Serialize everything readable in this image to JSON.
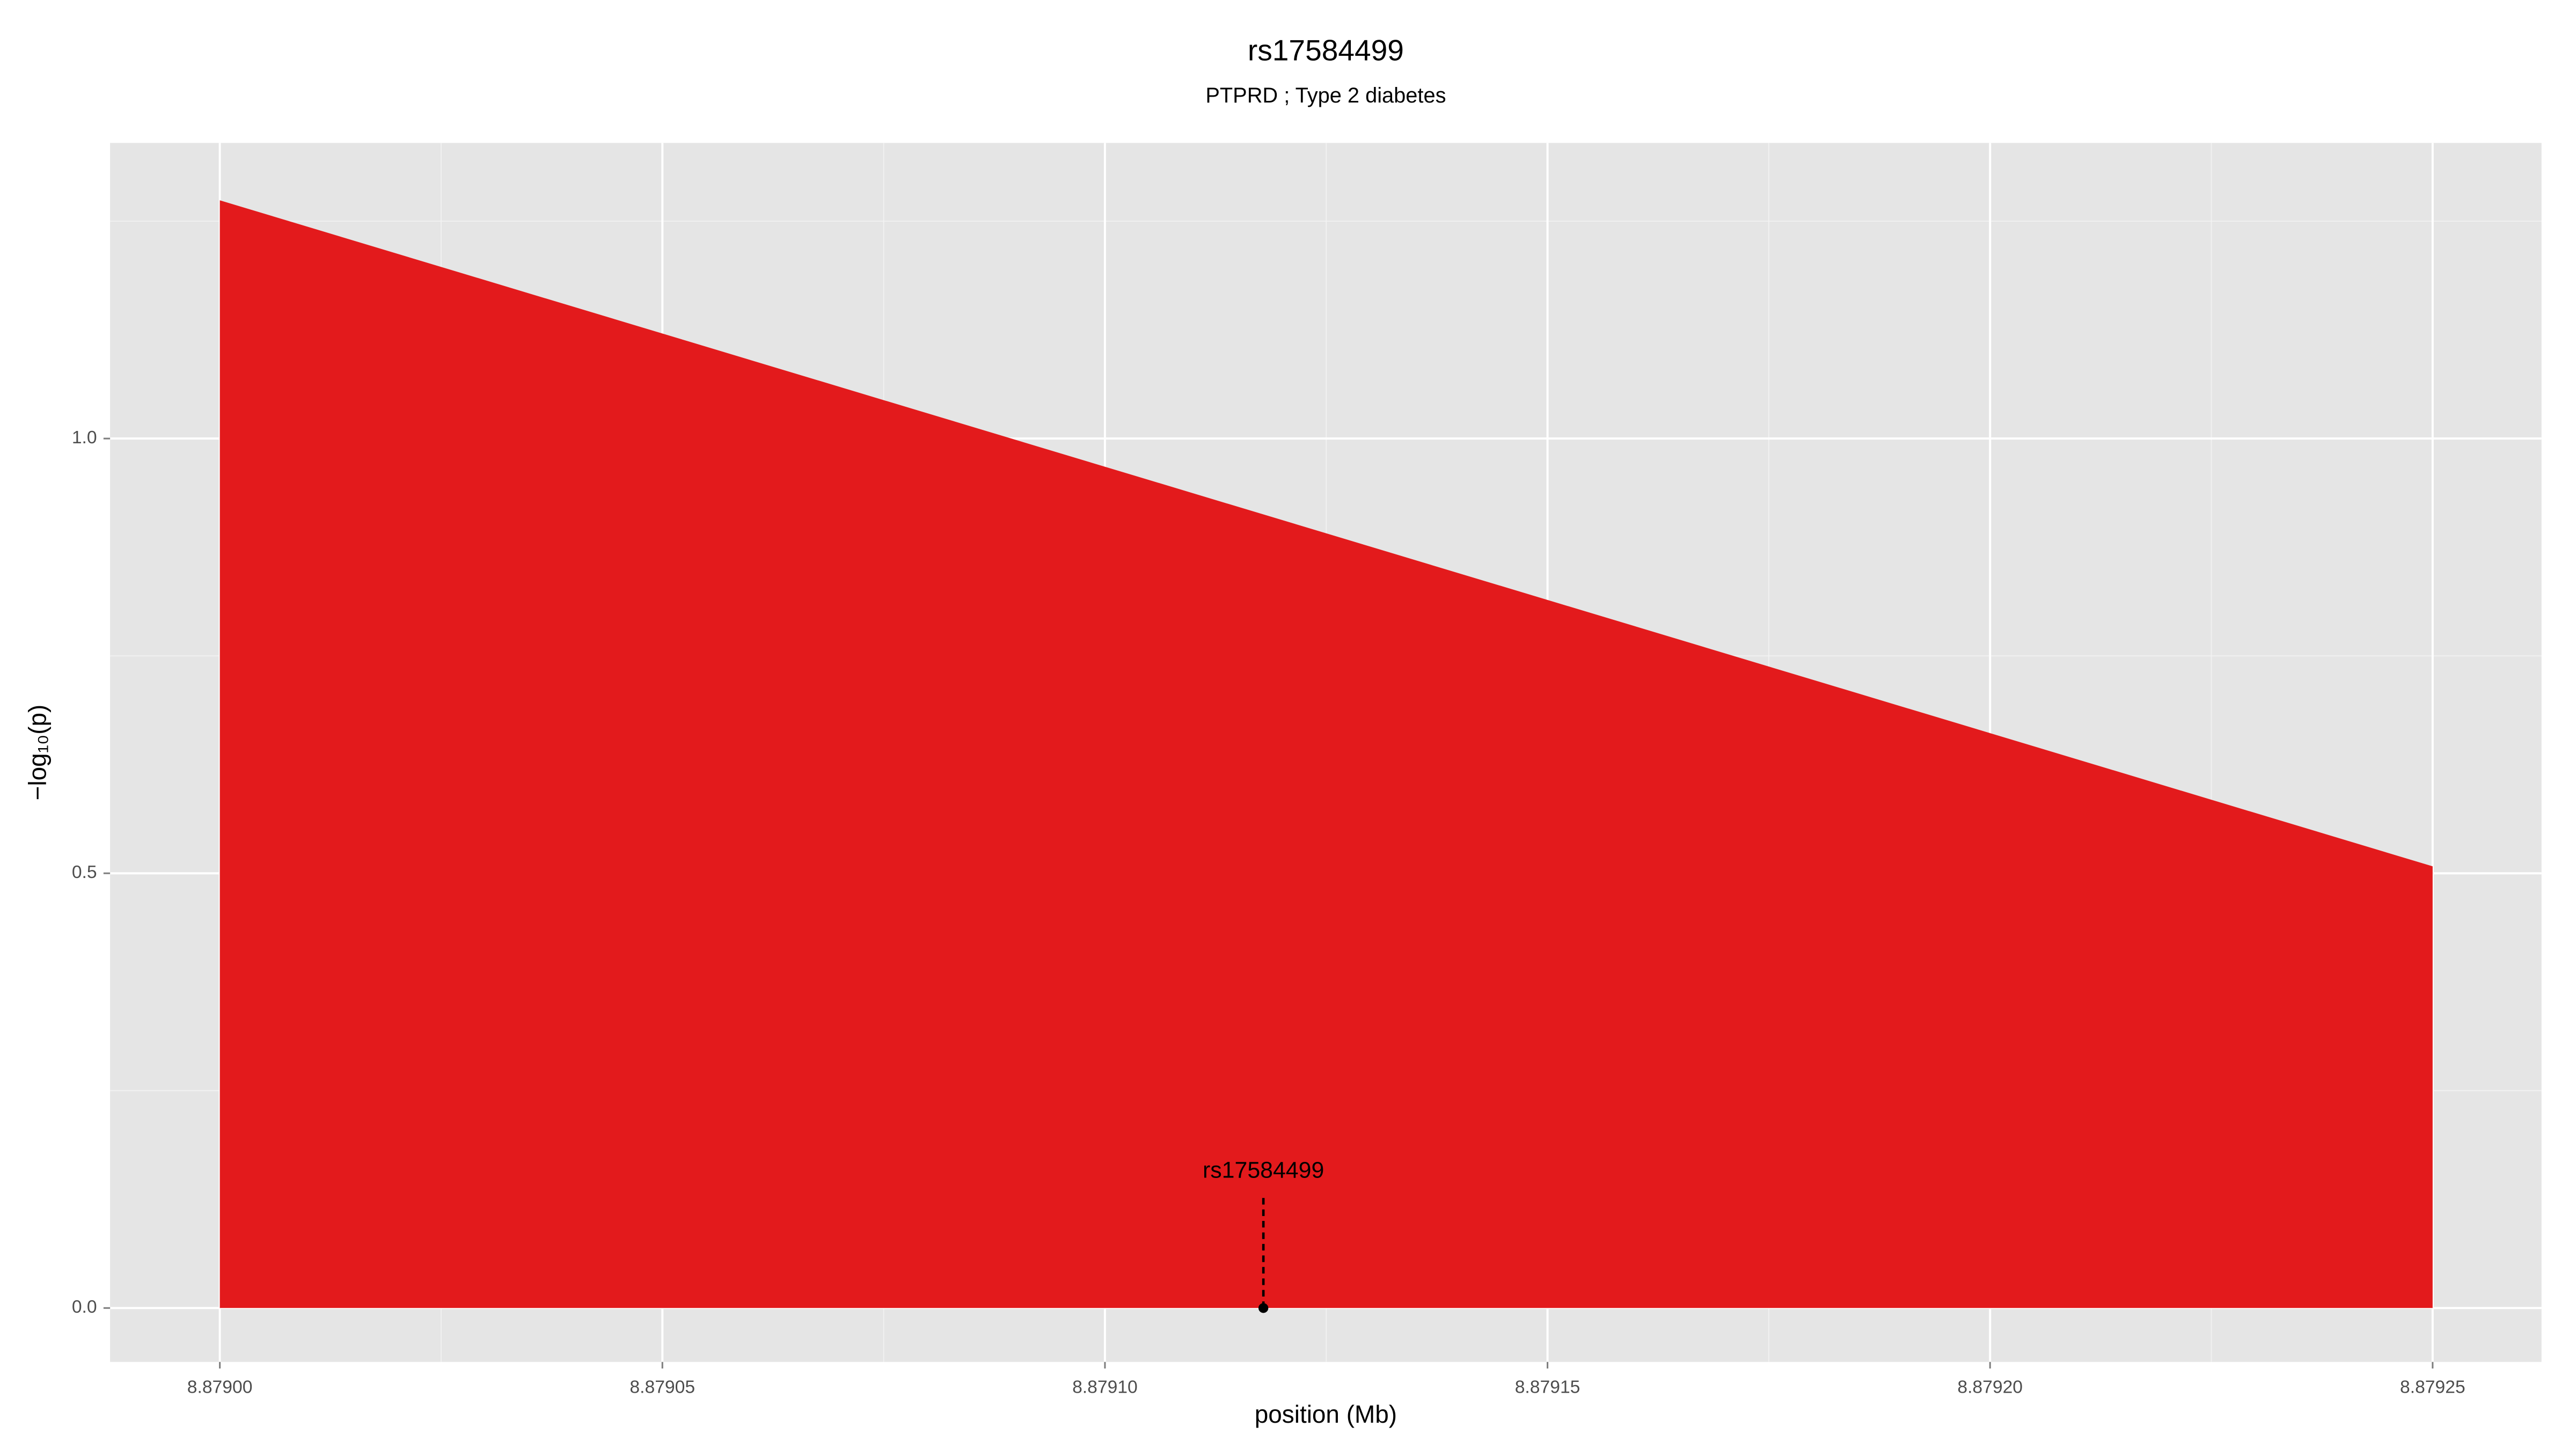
{
  "chart_data": {
    "type": "area",
    "title": "rs17584499",
    "subtitle": "PTPRD ; Type 2 diabetes",
    "x_label": "position (Mb)",
    "y_label": "−log₁₀(p)",
    "x": [
      8.879,
      8.87925
    ],
    "series": [
      {
        "color": "#e31a1c",
        "values": [
          1.274,
          0.508
        ]
      }
    ],
    "annotations": [
      {
        "text": "rs17584499",
        "x": 8.8791179,
        "y": 0,
        "label_y": 0.157,
        "line_top": 0.127
      }
    ],
    "xlim": [
      8.8789876,
      8.8792623
    ],
    "ylim": [
      -0.062,
      1.34
    ],
    "xticks": [
      {
        "value": 8.879,
        "label": "8.87900"
      },
      {
        "value": 8.87905,
        "label": "8.87905"
      },
      {
        "value": 8.8791,
        "label": "8.87910"
      },
      {
        "value": 8.87915,
        "label": "8.87915"
      },
      {
        "value": 8.8792,
        "label": "8.87920"
      },
      {
        "value": 8.87925,
        "label": "8.87925"
      }
    ],
    "yticks": [
      {
        "value": 0,
        "label": "0.0"
      },
      {
        "value": 0.5,
        "label": "0.5"
      },
      {
        "value": 1,
        "label": "1.0"
      }
    ],
    "grid": true,
    "panel_color": "#e5e5e5"
  }
}
